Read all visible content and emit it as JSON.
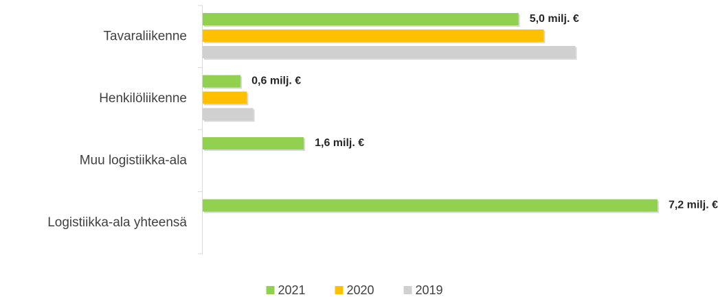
{
  "chart_data": {
    "type": "hbar",
    "categories": [
      "Tavaraliikenne",
      "Henkilöliikenne",
      "Muu logistiikka-ala",
      "Logistiikka-ala yhteensä"
    ],
    "series": [
      {
        "name": "2021",
        "color": "#92d050",
        "values": [
          5.0,
          0.6,
          1.6,
          7.2
        ],
        "value_labels": [
          "5,0 milj. €",
          "0,6 milj. €",
          "1,6 milj. €",
          "7,2 milj. €"
        ]
      },
      {
        "name": "2020",
        "color": "#ffc000",
        "values": [
          5.4,
          0.7,
          null,
          null
        ]
      },
      {
        "name": "2019",
        "color": "#d0d0d0",
        "values": [
          5.9,
          0.8,
          null,
          null
        ]
      }
    ],
    "xlim": [
      0,
      8
    ]
  }
}
